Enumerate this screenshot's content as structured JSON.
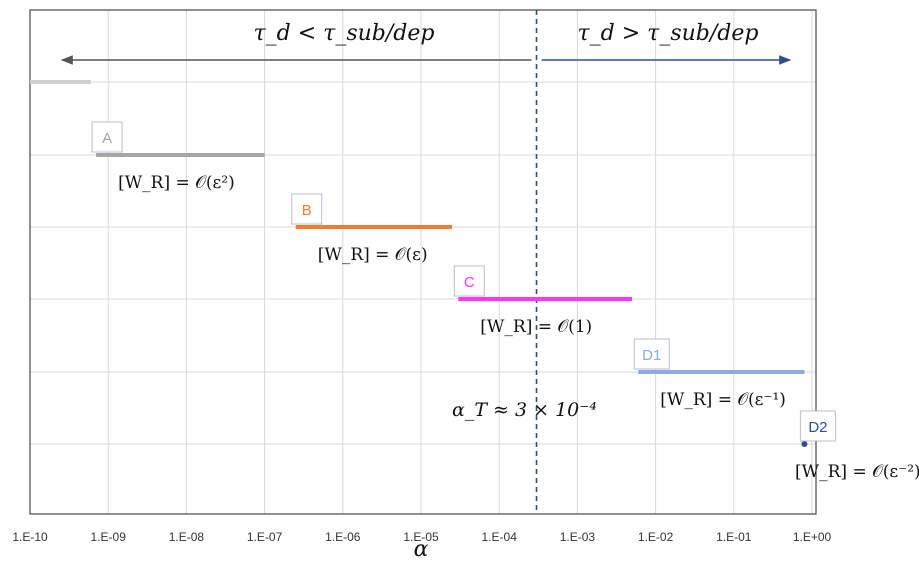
{
  "chart_data": {
    "type": "range",
    "xscale": "log10",
    "xlim": [
      1e-10,
      1
    ],
    "xlabel": "α",
    "x_tick_labels": [
      "1.E-10",
      "1.E-09",
      "1.E-08",
      "1.E-07",
      "1.E-06",
      "1.E-05",
      "1.E-04",
      "1.E-03",
      "1.E-02",
      "1.E-01",
      "1.E+00"
    ],
    "grid": true,
    "threshold": {
      "x": 0.0003,
      "label": "α_T ≈ 3 × 10⁻⁴"
    },
    "arrows": [
      {
        "label": "τ_d < τ_sub/dep",
        "direction": "left",
        "color": "#555555"
      },
      {
        "label": "τ_d > τ_sub/dep",
        "direction": "right",
        "color": "#2f4f8a"
      }
    ],
    "series": [
      {
        "name": "A",
        "x_start": 7e-10,
        "x_end": 1e-07,
        "row": 1,
        "color": "#a6a6a6",
        "annotation": "[W_R] = 𝒪(ε²)"
      },
      {
        "name": "B",
        "x_start": 2.5e-07,
        "x_end": 2.5e-05,
        "row": 2,
        "color": "#ed7d31",
        "annotation": "[W_R] = 𝒪(ε)"
      },
      {
        "name": "C",
        "x_start": 3e-05,
        "x_end": 0.005,
        "row": 3,
        "color": "#ff33ff",
        "annotation": "[W_R] = 𝒪(1)"
      },
      {
        "name": "D1",
        "x_start": 0.006,
        "x_end": 0.8,
        "row": 4,
        "color": "#8faadc",
        "annotation": "[W_R] = 𝒪(ε⁻¹)"
      },
      {
        "name": "D2",
        "x_start": 0.8,
        "x_end": 0.8,
        "row": 5,
        "color": "#2f4f8a",
        "annotation": "[W_R] = 𝒪(ε⁻²)"
      }
    ],
    "top_stub": {
      "x_start": 1e-10,
      "x_end": 6e-10,
      "row": 0,
      "color": "#d0d0d0"
    }
  }
}
